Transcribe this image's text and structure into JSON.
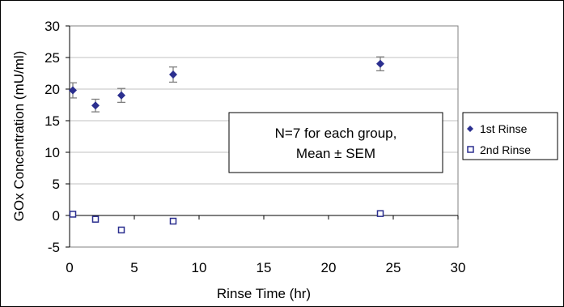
{
  "chart_data": {
    "type": "scatter",
    "title": "",
    "xlabel": "Rinse Time (hr)",
    "ylabel": "GOx Concentration (mU/ml)",
    "xlim": [
      0,
      30
    ],
    "ylim": [
      -5,
      30
    ],
    "x_ticks": [
      "0",
      "5",
      "10",
      "15",
      "20",
      "25",
      "30"
    ],
    "y_ticks": [
      "-5",
      "0",
      "5",
      "10",
      "15",
      "20",
      "25",
      "30"
    ],
    "grid": "horizontal",
    "legend_position": "right",
    "series": [
      {
        "name": "1st Rinse",
        "marker": "diamond",
        "color": "#2b2f8f",
        "x": [
          0.25,
          2,
          4,
          8,
          24
        ],
        "y": [
          19.8,
          17.4,
          19.0,
          22.3,
          24.0
        ],
        "error": [
          1.2,
          1.0,
          1.1,
          1.2,
          1.1
        ]
      },
      {
        "name": "2nd Rinse",
        "marker": "square-open",
        "color": "#2b2f8f",
        "x": [
          0.25,
          2,
          4,
          8,
          24
        ],
        "y": [
          0.2,
          -0.6,
          -2.3,
          -0.9,
          0.3
        ]
      }
    ],
    "annotation": {
      "line1": "N=7 for each group,",
      "line2": "Mean ± SEM"
    }
  }
}
